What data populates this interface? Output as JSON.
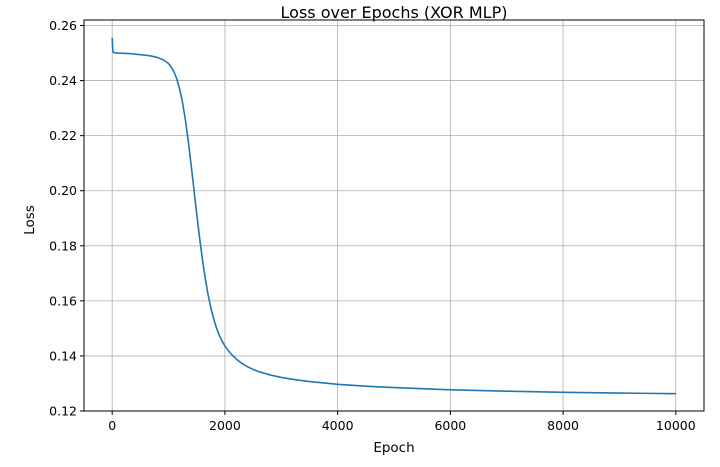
{
  "chart_data": {
    "type": "line",
    "title": "Loss over Epochs (XOR MLP)",
    "xlabel": "Epoch",
    "ylabel": "Loss",
    "xlim": [
      -500,
      10500
    ],
    "ylim": [
      0.12,
      0.262
    ],
    "xticks": [
      0,
      2000,
      4000,
      6000,
      8000,
      10000
    ],
    "yticks": [
      0.12,
      0.14,
      0.16,
      0.18,
      0.2,
      0.22,
      0.24,
      0.26
    ],
    "ytick_labels": [
      "0.12",
      "0.14",
      "0.16",
      "0.18",
      "0.20",
      "0.22",
      "0.24",
      "0.26"
    ],
    "grid": true,
    "series": [
      {
        "color": "#1f77b4",
        "x": [
          0,
          10,
          20,
          50,
          100,
          200,
          300,
          400,
          500,
          600,
          700,
          800,
          900,
          1000,
          1050,
          1100,
          1150,
          1200,
          1250,
          1300,
          1350,
          1400,
          1450,
          1500,
          1550,
          1600,
          1650,
          1700,
          1750,
          1800,
          1850,
          1900,
          1950,
          2000,
          2100,
          2200,
          2300,
          2400,
          2500,
          2600,
          2800,
          3000,
          3200,
          3500,
          4000,
          4500,
          5000,
          6000,
          7000,
          8000,
          9000,
          10000
        ],
        "y": [
          0.2555,
          0.2512,
          0.2502,
          0.2501,
          0.25,
          0.2499,
          0.2498,
          0.2496,
          0.2494,
          0.2492,
          0.2489,
          0.2484,
          0.2476,
          0.2462,
          0.2448,
          0.243,
          0.2404,
          0.2367,
          0.2318,
          0.2256,
          0.218,
          0.2095,
          0.2005,
          0.1915,
          0.183,
          0.1752,
          0.1683,
          0.1624,
          0.1575,
          0.1535,
          0.1502,
          0.1475,
          0.1454,
          0.1436,
          0.1409,
          0.1389,
          0.1373,
          0.1361,
          0.1351,
          0.1343,
          0.1331,
          0.1322,
          0.1315,
          0.1307,
          0.1297,
          0.129,
          0.1285,
          0.1277,
          0.1272,
          0.1268,
          0.1265,
          0.1263
        ]
      }
    ]
  }
}
